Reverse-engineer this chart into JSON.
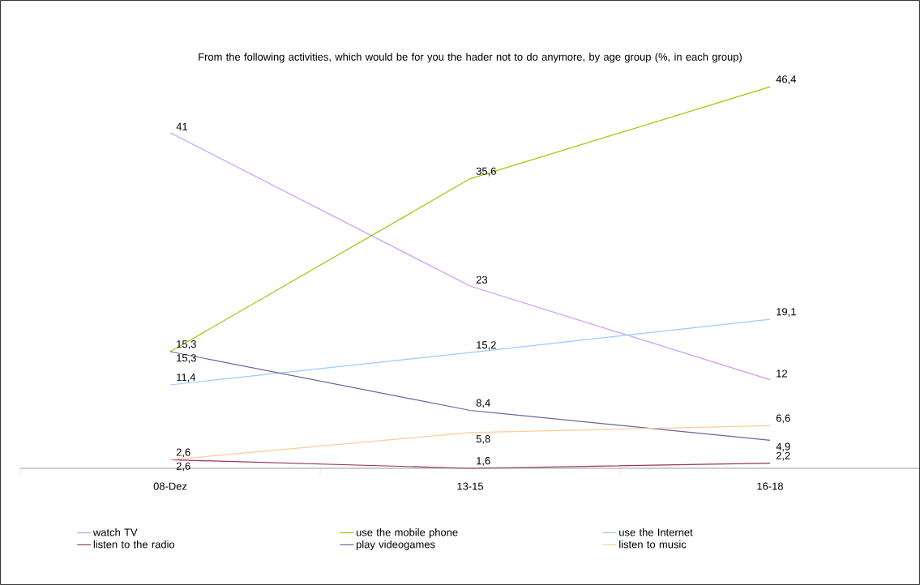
{
  "chart_data": {
    "type": "line",
    "title": "From the following activities, which would be for you the hader not to do anymore, by age group (%, in each group)",
    "categories": [
      "08-Dez",
      "13-15",
      "16-18"
    ],
    "series": [
      {
        "name": "watch TV",
        "color": "#cc99ff",
        "values": [
          41,
          23,
          12
        ],
        "value_labels": [
          "41",
          "23",
          "12"
        ]
      },
      {
        "name": "use the mobile phone",
        "color": "#99cc00",
        "values": [
          15.3,
          35.6,
          46.4
        ],
        "value_labels": [
          "15,3",
          "35,6",
          "46,4"
        ]
      },
      {
        "name": "use the Internet",
        "color": "#99ccff",
        "values": [
          11.4,
          15.2,
          19.1
        ],
        "value_labels": [
          "11,4",
          "15,2",
          "19,1"
        ]
      },
      {
        "name": "listen to the radio",
        "color": "#993366",
        "values": [
          2.6,
          1.6,
          2.2
        ],
        "value_labels": [
          "2,6",
          "1,6",
          "2,2"
        ]
      },
      {
        "name": "play videogames",
        "color": "#666699",
        "values": [
          15.3,
          8.4,
          4.9
        ],
        "value_labels": [
          "15,3",
          "8,4",
          "4,9"
        ]
      },
      {
        "name": "listen to music",
        "color": "#ffcc99",
        "values": [
          2.6,
          5.8,
          6.6
        ],
        "value_labels": [
          "2,6",
          "5,8",
          "6,6"
        ]
      }
    ],
    "legend": "bottom",
    "marker": "none",
    "line_style": "solid"
  }
}
